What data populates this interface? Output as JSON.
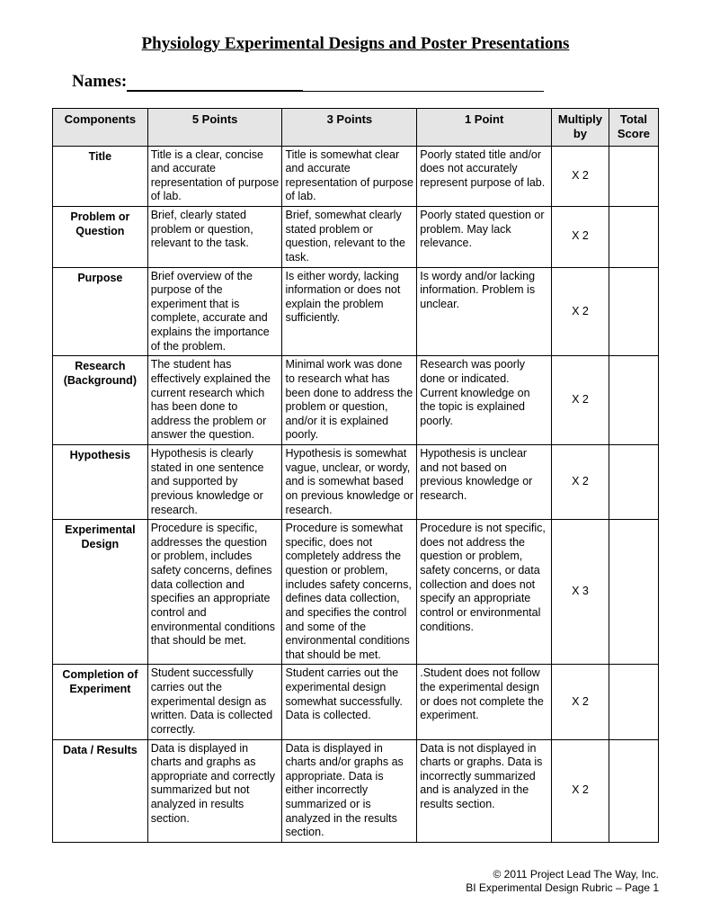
{
  "title": "Physiology Experimental Designs and Poster Presentations",
  "names_label": "Names:",
  "headers": {
    "components": "Components",
    "col5": "5 Points",
    "col3": "3 Points",
    "col1": "1 Point",
    "multiply": "Multiply by",
    "total": "Total Score"
  },
  "rows": [
    {
      "component": "Title",
      "p5": "Title is a clear, concise and accurate representation of purpose of lab.",
      "p3": "Title is somewhat clear and accurate representation of purpose of lab.",
      "p1": "Poorly stated title and/or does not accurately represent purpose of lab.",
      "mult": "X 2"
    },
    {
      "component": "Problem or Question",
      "p5": "Brief, clearly stated problem or question, relevant to the task.",
      "p3": "Brief, somewhat clearly stated problem or question, relevant to the task.",
      "p1": "Poorly stated question or problem. May lack relevance.",
      "mult": "X 2"
    },
    {
      "component": "Purpose",
      "p5": "Brief overview of the purpose of the experiment that is complete, accurate and explains the importance of the problem.",
      "p3": "Is either wordy, lacking information or does not explain the problem sufficiently.",
      "p1": "Is wordy and/or lacking information. Problem is unclear.",
      "mult": "X 2"
    },
    {
      "component": "Research (Background)",
      "p5": "The student has effectively explained the current research which has been done to address the problem or answer the question.",
      "p3": "Minimal work was done to research what has been done to address the problem or question, and/or it is explained poorly.",
      "p1": "Research was poorly done or indicated.  Current knowledge on the topic is explained poorly.",
      "mult": "X 2"
    },
    {
      "component": "Hypothesis",
      "p5": "Hypothesis is clearly stated in one sentence and supported by previous knowledge or research.",
      "p3": "Hypothesis is somewhat vague, unclear, or wordy, and is somewhat based on previous knowledge or research.",
      "p1": "Hypothesis is unclear and not based on previous knowledge or research.",
      "mult": "X 2"
    },
    {
      "component": "Experimental Design",
      "p5": "Procedure is specific, addresses the question or problem, includes safety concerns, defines data collection and specifies an appropriate control and environmental conditions that should be met.",
      "p3": "Procedure is somewhat specific, does not completely address the question or problem, includes safety concerns, defines data collection, and specifies the control and some of the environmental conditions that should be met.",
      "p1": "Procedure is not specific, does not address the question or problem, safety concerns, or data collection and does not specify an appropriate control or environmental conditions.",
      "mult": "X 3"
    },
    {
      "component": "Completion of Experiment",
      "p5": "Student successfully carries out the experimental design as written. Data is collected correctly.",
      "p3": "Student carries out the experimental design somewhat successfully.  Data is collected.",
      "p1": ".Student does not follow the experimental design or does not complete the experiment.",
      "mult": "X 2"
    },
    {
      "component": "Data / Results",
      "p5": "Data is displayed in charts and graphs as appropriate and correctly summarized but not analyzed in results section.",
      "p3": "Data is displayed in charts and/or graphs as appropriate.  Data is either incorrectly summarized or is analyzed in the results section.",
      "p1": "Data is not displayed in charts or graphs.  Data is incorrectly summarized and is analyzed in the results section.",
      "mult": "X 2"
    }
  ],
  "footer": {
    "line1": "© 2011 Project Lead The Way, Inc.",
    "line2": "BI Experimental Design Rubric – Page 1"
  }
}
